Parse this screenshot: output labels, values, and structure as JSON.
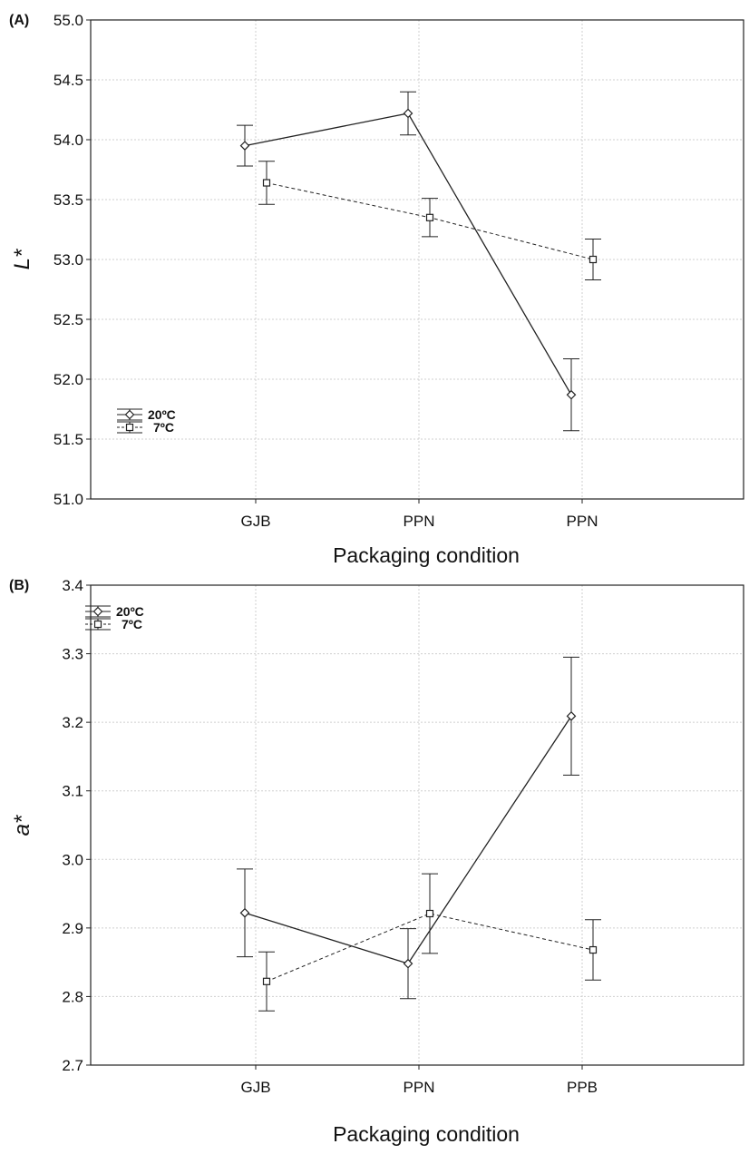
{
  "chart_data": [
    {
      "panel_label": "(A)",
      "type": "line",
      "error_bars": true,
      "categories": [
        "GJB",
        "PPN",
        "PPN"
      ],
      "xlabel": "Packaging condition",
      "ylabel": "L*",
      "ylim": [
        51.0,
        55.0
      ],
      "yticks": [
        "51.0",
        "51.5",
        "52.0",
        "52.5",
        "53.0",
        "53.5",
        "54.0",
        "54.5",
        "55.0"
      ],
      "grid": true,
      "legend_position": "lower-left",
      "series": [
        {
          "name": "20ºC",
          "marker": "diamond",
          "style": "solid",
          "values": [
            53.95,
            54.22,
            51.87
          ],
          "err": [
            0.17,
            0.18,
            0.3
          ]
        },
        {
          "name": "7ºC",
          "marker": "square",
          "style": "dashed",
          "values": [
            53.64,
            53.35,
            53.0
          ],
          "err": [
            0.18,
            0.16,
            0.17
          ]
        }
      ]
    },
    {
      "panel_label": "(B)",
      "type": "line",
      "error_bars": true,
      "categories": [
        "GJB",
        "PPN",
        "PPB"
      ],
      "xlabel": "Packaging condition",
      "ylabel": "a*",
      "ylim": [
        2.7,
        3.4
      ],
      "yticks": [
        "2.7",
        "2.8",
        "2.9",
        "3.0",
        "3.1",
        "3.2",
        "3.3",
        "3.4"
      ],
      "grid": true,
      "legend_position": "top-left",
      "series": [
        {
          "name": "20ºC",
          "marker": "diamond",
          "style": "solid",
          "values": [
            2.922,
            2.848,
            3.209
          ],
          "err": [
            0.064,
            0.051,
            0.086
          ]
        },
        {
          "name": "7ºC",
          "marker": "square",
          "style": "dashed",
          "values": [
            2.822,
            2.921,
            2.868
          ],
          "err": [
            0.043,
            0.058,
            0.044
          ]
        }
      ]
    }
  ]
}
